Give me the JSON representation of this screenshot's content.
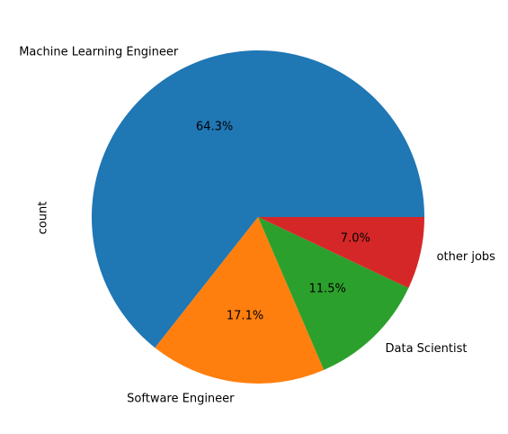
{
  "chart_data": {
    "type": "pie",
    "ylabel": "count",
    "start_angle_deg": 0,
    "direction": "counterclockwise",
    "slices": [
      {
        "label": "Machine Learning Engineer",
        "pct_label": "64.3%",
        "value": 64.3,
        "color": "#1f77b4"
      },
      {
        "label": "Software Engineer",
        "pct_label": "17.1%",
        "value": 17.1,
        "color": "#ff7f0e"
      },
      {
        "label": "Data Scientist",
        "pct_label": "11.5%",
        "value": 11.5,
        "color": "#2ca02c"
      },
      {
        "label": "other jobs",
        "pct_label": "7.0%",
        "value": 7.0,
        "color": "#d62728"
      }
    ]
  }
}
